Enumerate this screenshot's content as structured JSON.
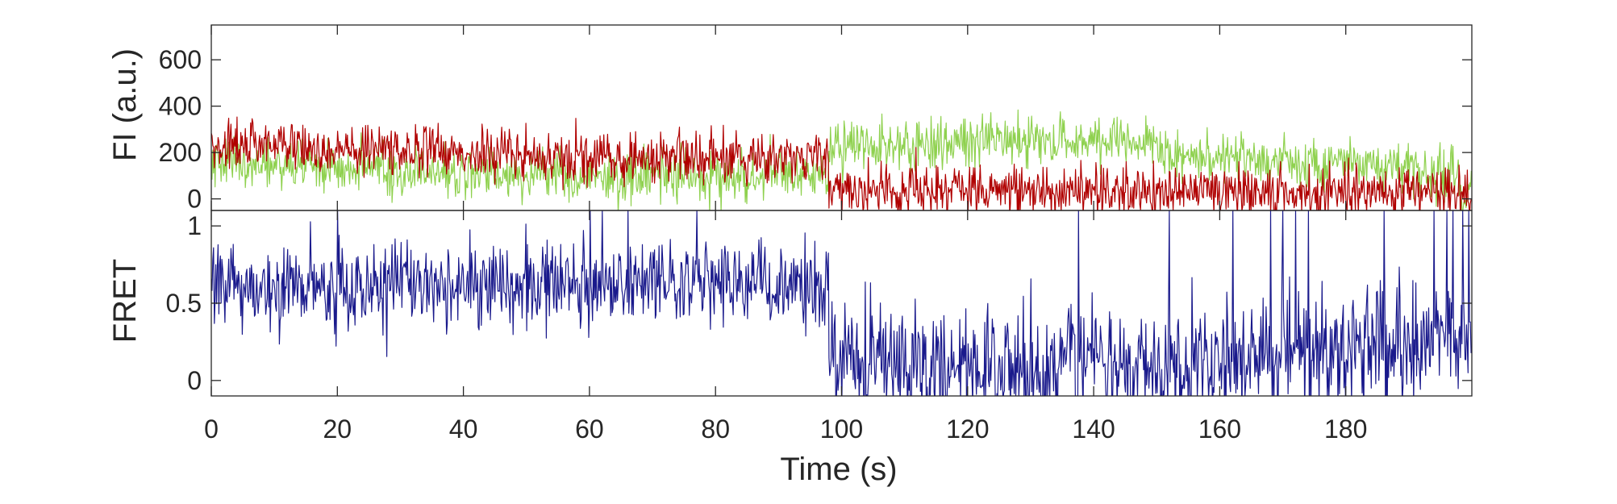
{
  "chart_data": [
    {
      "type": "line",
      "panel": "top",
      "ylabel": "FI (a.u.)",
      "ylim": [
        -50,
        750
      ],
      "yticks": [
        0,
        200,
        400,
        600
      ],
      "xlim": [
        0,
        200
      ],
      "grid": false,
      "series": [
        {
          "color": "#8fd14f",
          "segments": [
            {
              "x": [
                0,
                10,
                20,
                30,
                40,
                50,
                60,
                70,
                80,
                90,
                98
              ],
              "y": [
                160,
                150,
                130,
                120,
                110,
                110,
                105,
                100,
                95,
                100,
                100
              ]
            },
            {
              "x": [
                98,
                110,
                120,
                130,
                140,
                150,
                152,
                160,
                170,
                180,
                190,
                198
              ],
              "y": [
                225,
                230,
                245,
                250,
                245,
                230,
                185,
                175,
                160,
                150,
                130,
                90
              ]
            },
            {
              "x": [
                198,
                200
              ],
              "y": [
                30,
                20
              ]
            }
          ]
        },
        {
          "color": "#b00000",
          "segments": [
            {
              "x": [
                0,
                10,
                20,
                30,
                40,
                50,
                60,
                70,
                80,
                90,
                98
              ],
              "y": [
                240,
                230,
                215,
                210,
                200,
                190,
                185,
                180,
                180,
                190,
                200
              ]
            },
            {
              "x": [
                98,
                110,
                120,
                130,
                140,
                150,
                160,
                170,
                180,
                190,
                198,
                200
              ],
              "y": [
                45,
                40,
                40,
                35,
                35,
                35,
                35,
                30,
                30,
                25,
                15,
                10
              ]
            }
          ]
        }
      ]
    },
    {
      "type": "line",
      "panel": "bottom",
      "xlabel": "Time (s)",
      "ylabel": "FRET",
      "ylim": [
        -0.1,
        1.1
      ],
      "yticks": [
        0,
        0.5,
        1
      ],
      "ytick_labels": [
        "0",
        "0.5",
        "1"
      ],
      "xlim": [
        0,
        200
      ],
      "xticks": [
        0,
        20,
        40,
        60,
        80,
        100,
        120,
        140,
        160,
        180
      ],
      "grid": false,
      "series": [
        {
          "color": "#1a1a8c",
          "segments": [
            {
              "x": [
                0,
                20,
                40,
                60,
                70,
                80,
                90,
                98
              ],
              "y": [
                0.6,
                0.6,
                0.62,
                0.63,
                0.64,
                0.63,
                0.6,
                0.58
              ]
            },
            {
              "x": [
                98,
                110,
                130,
                150,
                170,
                190,
                200
              ],
              "y": [
                0.15,
                0.12,
                0.1,
                0.12,
                0.18,
                0.25,
                0.3
              ]
            }
          ],
          "spikes": [
            {
              "x": 20,
              "y": 1.1
            },
            {
              "x": 60,
              "y": 1.1
            },
            {
              "x": 62,
              "y": 1.1
            },
            {
              "x": 66,
              "y": 1.1
            },
            {
              "x": 77,
              "y": 1.1
            },
            {
              "x": 137.5,
              "y": 1.1
            },
            {
              "x": 152,
              "y": 1.1
            },
            {
              "x": 162,
              "y": 1.1
            },
            {
              "x": 168,
              "y": 1.1
            },
            {
              "x": 170,
              "y": 1.1
            },
            {
              "x": 172,
              "y": 1.1
            },
            {
              "x": 174,
              "y": 1.1
            },
            {
              "x": 186,
              "y": 1.1
            },
            {
              "x": 194,
              "y": 1.1
            },
            {
              "x": 196,
              "y": 1.1
            },
            {
              "x": 197,
              "y": 1.1
            },
            {
              "x": 198.5,
              "y": 1.1
            },
            {
              "x": 199.5,
              "y": 1.1
            }
          ]
        }
      ]
    }
  ]
}
